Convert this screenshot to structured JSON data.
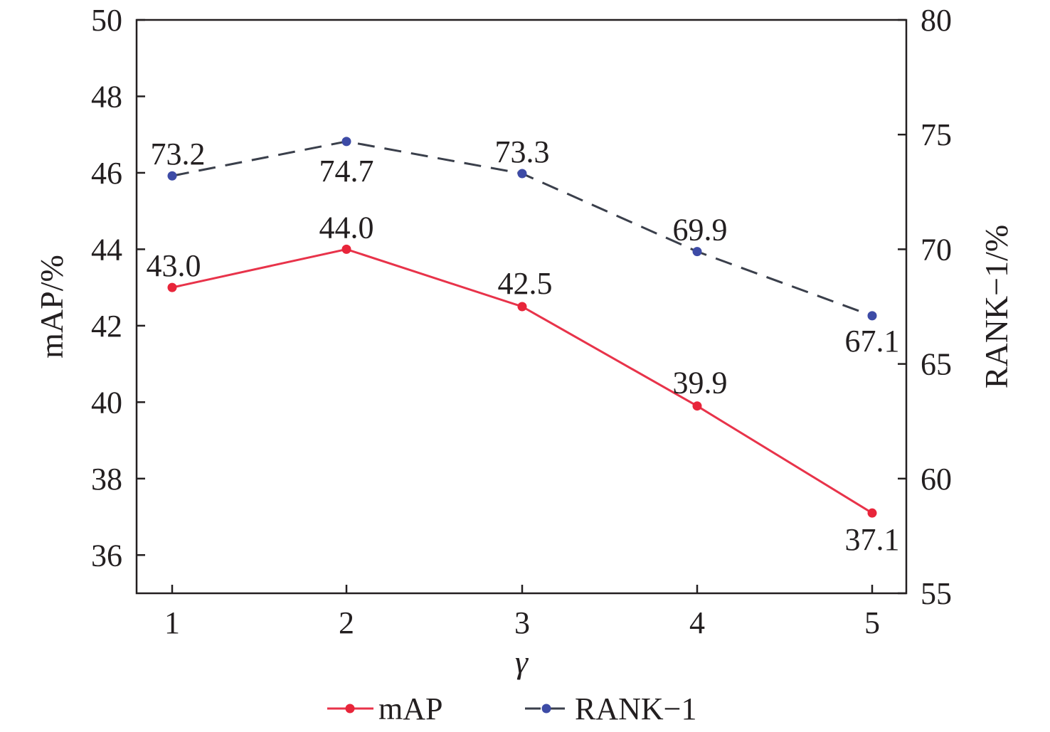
{
  "chart_data": {
    "type": "line",
    "x": [
      1,
      2,
      3,
      4,
      5
    ],
    "xlabel": "γ",
    "xticks": [
      "1",
      "2",
      "3",
      "4",
      "5"
    ],
    "y_left": {
      "label": "mAP/%",
      "lim": [
        35,
        50
      ],
      "ticks": [
        "36",
        "38",
        "40",
        "42",
        "44",
        "46",
        "48",
        "50"
      ]
    },
    "y_right": {
      "label": "RANK−1/%",
      "lim": [
        55,
        80
      ],
      "ticks": [
        "55",
        "60",
        "65",
        "70",
        "75",
        "80"
      ]
    },
    "series": [
      {
        "name": "mAP",
        "axis": "left",
        "style": "solid",
        "color": "#e8334a",
        "marker_color": "#e8253a",
        "values": [
          43.0,
          44.0,
          42.5,
          39.9,
          37.1
        ],
        "labels": [
          "43.0",
          "44.0",
          "42.5",
          "39.9",
          "37.1"
        ]
      },
      {
        "name": "RANK−1",
        "axis": "right",
        "style": "dashed",
        "color": "#3a3f4b",
        "marker_color": "#3d4ba6",
        "values": [
          73.2,
          74.7,
          73.3,
          69.9,
          67.1
        ],
        "labels": [
          "73.2",
          "74.7",
          "73.3",
          "69.9",
          "67.1"
        ]
      }
    ],
    "grid": false,
    "legend": "bottom"
  }
}
